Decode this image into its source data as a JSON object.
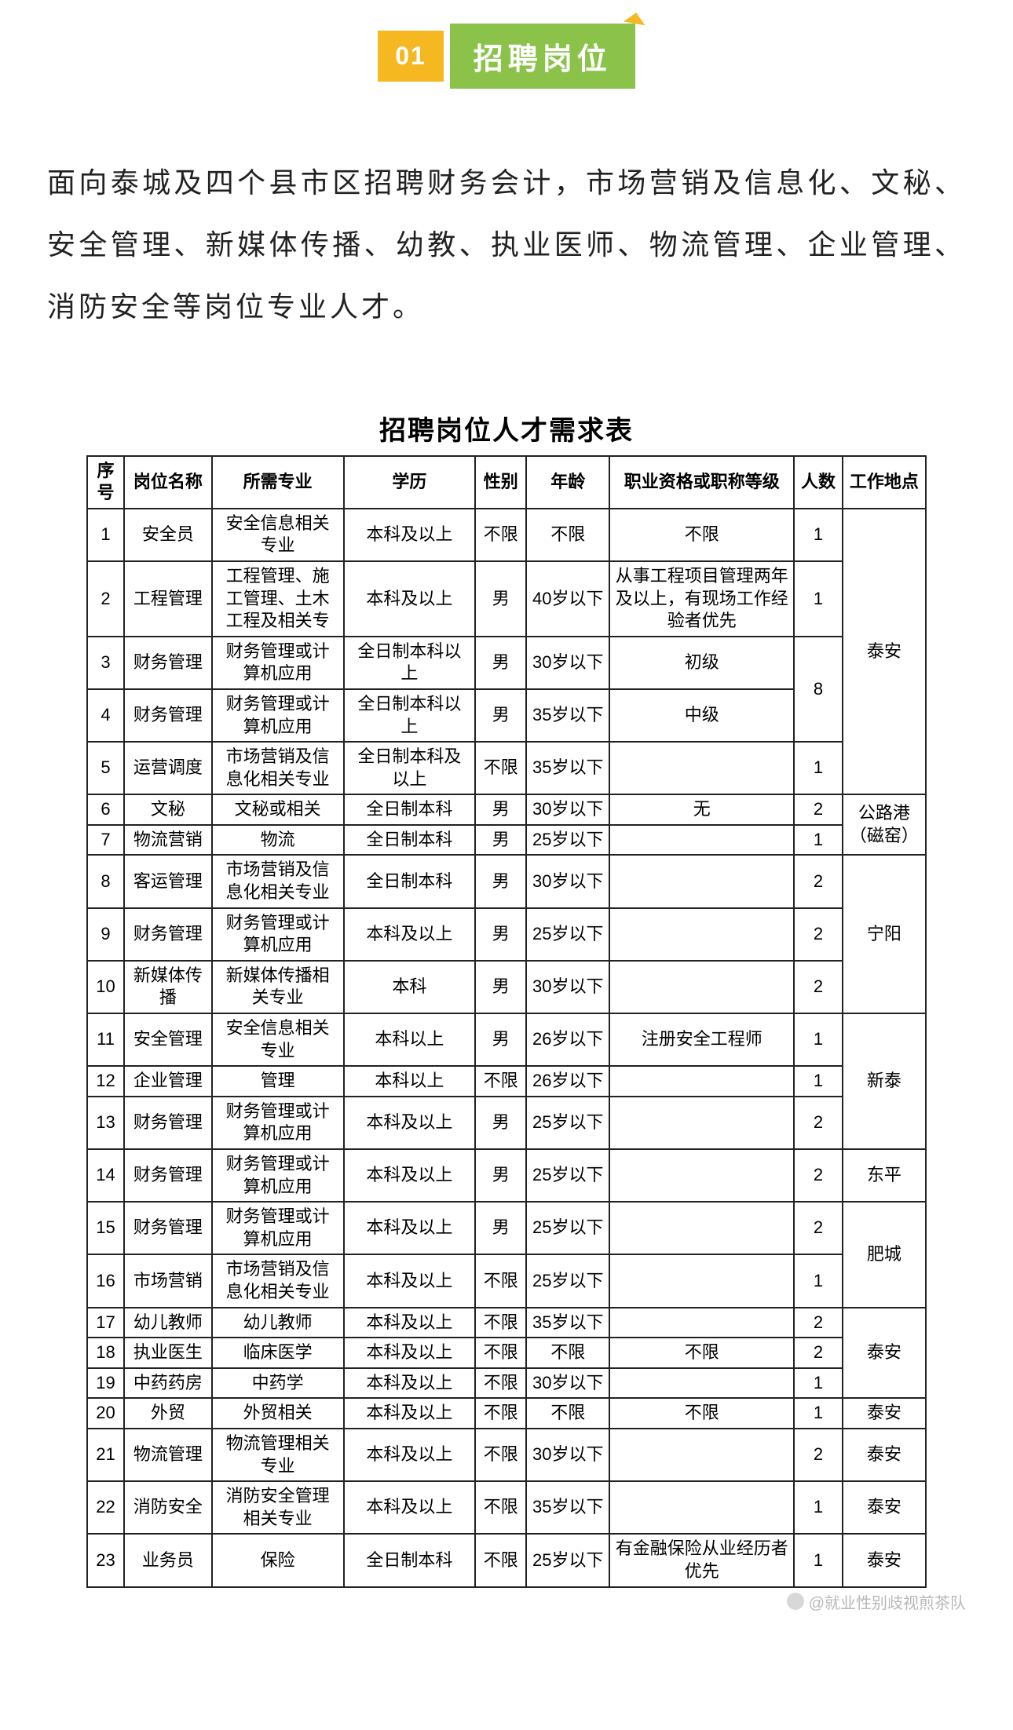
{
  "header": {
    "num": "01",
    "title": "招聘岗位"
  },
  "intro": "面向泰城及四个县市区招聘财务会计，市场营销及信息化、文秘、安全管理、新媒体传播、幼教、执业医师、物流管理、企业管理、消防安全等岗位专业人才。",
  "table_title": "招聘岗位人才需求表",
  "columns": [
    "序号",
    "岗位名称",
    "所需专业",
    "学历",
    "性别",
    "年龄",
    "职业资格或职称等级",
    "人数",
    "工作地点"
  ],
  "rows": [
    {
      "idx": "1",
      "pos": "安全员",
      "major": "安全信息相关专业",
      "edu": "本科及以上",
      "sex": "不限",
      "age": "不限",
      "qual": "不限",
      "cnt": "1"
    },
    {
      "idx": "2",
      "pos": "工程管理",
      "major": "工程管理、施工管理、土木工程及相关专",
      "edu": "本科及以上",
      "sex": "男",
      "age": "40岁以下",
      "qual": "从事工程项目管理两年及以上，有现场工作经验者优先",
      "cnt": "1"
    },
    {
      "idx": "3",
      "pos": "财务管理",
      "major": "财务管理或计算机应用",
      "edu": "全日制本科以上",
      "sex": "男",
      "age": "30岁以下",
      "qual": "初级"
    },
    {
      "idx": "4",
      "pos": "财务管理",
      "major": "财务管理或计算机应用",
      "edu": "全日制本科以上",
      "sex": "男",
      "age": "35岁以下",
      "qual": "中级"
    },
    {
      "idx": "5",
      "pos": "运营调度",
      "major": "市场营销及信息化相关专业",
      "edu": "全日制本科及以上",
      "sex": "不限",
      "age": "35岁以下",
      "qual": "",
      "cnt": "1"
    },
    {
      "idx": "6",
      "pos": "文秘",
      "major": "文秘或相关",
      "edu": "全日制本科",
      "sex": "男",
      "age": "30岁以下",
      "qual": "无",
      "cnt": "2"
    },
    {
      "idx": "7",
      "pos": "物流营销",
      "major": "物流",
      "edu": "全日制本科",
      "sex": "男",
      "age": "25岁以下",
      "qual": "",
      "cnt": "1"
    },
    {
      "idx": "8",
      "pos": "客运管理",
      "major": "市场营销及信息化相关专业",
      "edu": "全日制本科",
      "sex": "男",
      "age": "30岁以下",
      "qual": "",
      "cnt": "2"
    },
    {
      "idx": "9",
      "pos": "财务管理",
      "major": "财务管理或计算机应用",
      "edu": "本科及以上",
      "sex": "男",
      "age": "25岁以下",
      "qual": "",
      "cnt": "2"
    },
    {
      "idx": "10",
      "pos": "新媒体传播",
      "major": "新媒体传播相关专业",
      "edu": "本科",
      "sex": "男",
      "age": "30岁以下",
      "qual": "",
      "cnt": "2"
    },
    {
      "idx": "11",
      "pos": "安全管理",
      "major": "安全信息相关专业",
      "edu": "本科以上",
      "sex": "男",
      "age": "26岁以下",
      "qual": "注册安全工程师",
      "cnt": "1"
    },
    {
      "idx": "12",
      "pos": "企业管理",
      "major": "管理",
      "edu": "本科以上",
      "sex": "不限",
      "age": "26岁以下",
      "qual": "",
      "cnt": "1"
    },
    {
      "idx": "13",
      "pos": "财务管理",
      "major": "财务管理或计算机应用",
      "edu": "本科及以上",
      "sex": "男",
      "age": "25岁以下",
      "qual": "",
      "cnt": "2"
    },
    {
      "idx": "14",
      "pos": "财务管理",
      "major": "财务管理或计算机应用",
      "edu": "本科及以上",
      "sex": "男",
      "age": "25岁以下",
      "qual": "",
      "cnt": "2",
      "loc": "东平"
    },
    {
      "idx": "15",
      "pos": "财务管理",
      "major": "财务管理或计算机应用",
      "edu": "本科及以上",
      "sex": "男",
      "age": "25岁以下",
      "qual": "",
      "cnt": "2"
    },
    {
      "idx": "16",
      "pos": "市场营销",
      "major": "市场营销及信息化相关专业",
      "edu": "本科及以上",
      "sex": "不限",
      "age": "25岁以下",
      "qual": "",
      "cnt": "1"
    },
    {
      "idx": "17",
      "pos": "幼儿教师",
      "major": "幼儿教师",
      "edu": "本科及以上",
      "sex": "不限",
      "age": "35岁以下",
      "qual": "",
      "cnt": "2"
    },
    {
      "idx": "18",
      "pos": "执业医生",
      "major": "临床医学",
      "edu": "本科及以上",
      "sex": "不限",
      "age": "不限",
      "qual": "不限",
      "cnt": "2"
    },
    {
      "idx": "19",
      "pos": "中药药房",
      "major": "中药学",
      "edu": "本科及以上",
      "sex": "不限",
      "age": "30岁以下",
      "qual": "",
      "cnt": "1"
    },
    {
      "idx": "20",
      "pos": "外贸",
      "major": "外贸相关",
      "edu": "本科及以上",
      "sex": "不限",
      "age": "不限",
      "qual": "不限",
      "cnt": "1",
      "loc": "泰安"
    },
    {
      "idx": "21",
      "pos": "物流管理",
      "major": "物流管理相关专业",
      "edu": "本科及以上",
      "sex": "不限",
      "age": "30岁以下",
      "qual": "",
      "cnt": "2",
      "loc": "泰安"
    },
    {
      "idx": "22",
      "pos": "消防安全",
      "major": "消防安全管理相关专业",
      "edu": "本科及以上",
      "sex": "不限",
      "age": "35岁以下",
      "qual": "",
      "cnt": "1",
      "loc": "泰安"
    },
    {
      "idx": "23",
      "pos": "业务员",
      "major": "保险",
      "edu": "全日制本科",
      "sex": "不限",
      "age": "25岁以下",
      "qual": "有金融保险从业经历者优先",
      "cnt": "1",
      "loc": "泰安"
    }
  ],
  "merged_counts": {
    "cnt_3_4": "8"
  },
  "merged_locations": {
    "loc_1_5": "泰安",
    "loc_6_7": "公路港（磁窑）",
    "loc_8_10": "宁阳",
    "loc_11_13": "新泰",
    "loc_15_16": "肥城",
    "loc_17_19": "泰安"
  },
  "watermark": "@就业性别歧视煎茶队",
  "colors": {
    "num_bg": "#f5b820",
    "title_bg": "#8bc34a",
    "border": "#222222",
    "watermark": "#b8b8b8"
  }
}
